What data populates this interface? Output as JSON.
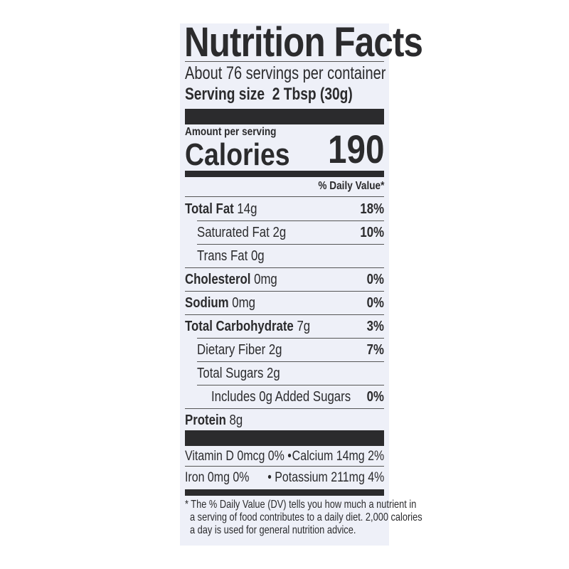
{
  "title": "Nutrition Facts",
  "servings_per_container": "About 76 servings per container",
  "serving_size_label": "Serving size",
  "serving_size_value": "2 Tbsp (30g)",
  "amount_per_serving": "Amount per serving",
  "calories_label": "Calories",
  "calories_value": "190",
  "daily_value_header": "% Daily Value*",
  "nutrients": [
    {
      "name": "Total Fat",
      "amount": "14g",
      "dv": "18%",
      "bold": true,
      "indent": 0
    },
    {
      "name": "Saturated Fat",
      "amount": "2g",
      "dv": "10%",
      "bold": false,
      "indent": 1
    },
    {
      "name": "Trans Fat",
      "amount": "0g",
      "dv": "",
      "bold": false,
      "indent": 1
    },
    {
      "name": "Cholesterol",
      "amount": "0mg",
      "dv": "0%",
      "bold": true,
      "indent": 0
    },
    {
      "name": "Sodium",
      "amount": "0mg",
      "dv": "0%",
      "bold": true,
      "indent": 0
    },
    {
      "name": "Total Carbohydrate",
      "amount": "7g",
      "dv": "3%",
      "bold": true,
      "indent": 0
    },
    {
      "name": "Dietary Fiber",
      "amount": "2g",
      "dv": "7%",
      "bold": false,
      "indent": 1
    },
    {
      "name": "Total Sugars",
      "amount": "2g",
      "dv": "",
      "bold": false,
      "indent": 1
    },
    {
      "name": "Includes 0g Added Sugars",
      "amount": "",
      "dv": "0%",
      "bold": false,
      "indent": 2
    },
    {
      "name": "Protein",
      "amount": "8g",
      "dv": "",
      "bold": true,
      "indent": 0
    }
  ],
  "micros": {
    "vitamin_d": "Vitamin D 0mcg 0%",
    "calcium": "Calcium 14mg 2%",
    "iron": "Iron 0mg 0%",
    "potassium": "Potassium 211mg 4%",
    "separator": "•"
  },
  "footnote": [
    "* The % Daily Value (DV) tells you how much a nutrient in",
    "a serving of food contributes to a daily diet. 2,000 calories",
    "a day is used for general nutrition advice."
  ]
}
